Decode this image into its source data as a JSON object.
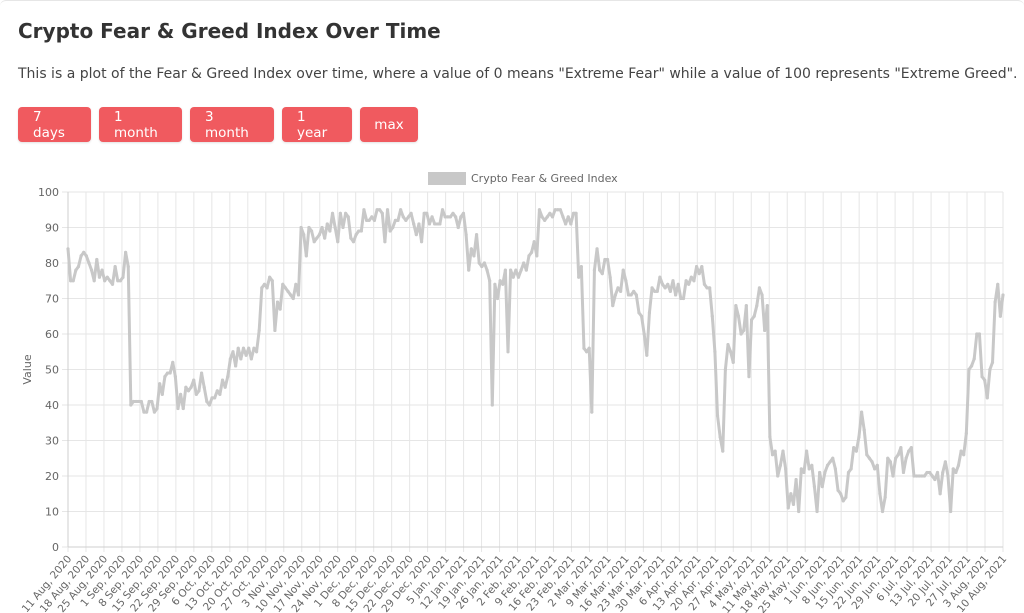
{
  "page": {
    "title": "Crypto Fear & Greed Index Over Time",
    "description": "This is a plot of the Fear & Greed Index over time, where a value of 0 means \"Extreme Fear\" while a value of 100 represents \"Extreme Greed\"."
  },
  "buttons": [
    "7 days",
    "1 month",
    "3 month",
    "1 year",
    "max"
  ],
  "colors": {
    "button_bg": "#f05a5f",
    "line": "#c8c8c8",
    "grid": "#e6e6e6",
    "axis_text": "#666666"
  },
  "chart_data": {
    "type": "line",
    "legend": {
      "label": "Crypto Fear & Greed Index",
      "position": "top"
    },
    "ylabel": "Value",
    "xlabel": "",
    "ylim": [
      0,
      100
    ],
    "yticks": [
      0,
      10,
      20,
      30,
      40,
      50,
      60,
      70,
      80,
      90,
      100
    ],
    "xticks": [
      "11 Aug, 2020",
      "18 Aug, 2020",
      "25 Aug, 2020",
      "1 Sep, 2020",
      "8 Sep, 2020",
      "15 Sep, 2020",
      "22 Sep, 2020",
      "29 Sep, 2020",
      "6 Oct, 2020",
      "13 Oct, 2020",
      "20 Oct, 2020",
      "27 Oct, 2020",
      "3 Nov, 2020",
      "10 Nov, 2020",
      "17 Nov, 2020",
      "24 Nov, 2020",
      "1 Dec, 2020",
      "8 Dec, 2020",
      "15 Dec, 2020",
      "22 Dec, 2020",
      "29 Dec, 2020",
      "5 Jan, 2021",
      "12 Jan, 2021",
      "19 Jan, 2021",
      "26 Jan, 2021",
      "2 Feb, 2021",
      "9 Feb, 2021",
      "16 Feb, 2021",
      "23 Feb, 2021",
      "2 Mar, 2021",
      "9 Mar, 2021",
      "16 Mar, 2021",
      "23 Mar, 2021",
      "30 Mar, 2021",
      "6 Apr, 2021",
      "13 Apr, 2021",
      "20 Apr, 2021",
      "27 Apr, 2021",
      "4 May, 2021",
      "11 May, 2021",
      "18 May, 2021",
      "25 May, 2021",
      "1 Jun, 2021",
      "8 Jun, 2021",
      "15 Jun, 2021",
      "22 Jun, 2021",
      "29 Jun, 2021",
      "6 Jul, 2021",
      "13 Jul, 2021",
      "20 Jul, 2021",
      "27 Jul, 2021",
      "3 Aug, 2021",
      "10 Aug, 2021"
    ],
    "grid": true,
    "series": [
      {
        "name": "Crypto Fear & Greed Index",
        "values": [
          84,
          75,
          75,
          78,
          79,
          82,
          83,
          82,
          80,
          78,
          75,
          81,
          76,
          78,
          75,
          76,
          75,
          74,
          79,
          75,
          75,
          76,
          83,
          79,
          40,
          41,
          41,
          41,
          41,
          38,
          38,
          41,
          41,
          38,
          39,
          46,
          43,
          48,
          49,
          49,
          52,
          48,
          39,
          43,
          39,
          45,
          44,
          45,
          47,
          43,
          44,
          49,
          45,
          41,
          40,
          42,
          42,
          44,
          43,
          47,
          45,
          48,
          53,
          55,
          51,
          56,
          53,
          56,
          54,
          56,
          53,
          56,
          55,
          61,
          73,
          74,
          73,
          76,
          75,
          61,
          69,
          67,
          74,
          73,
          72,
          71,
          70,
          74,
          71,
          90,
          88,
          82,
          90,
          89,
          86,
          87,
          88,
          90,
          87,
          91,
          89,
          94,
          90,
          86,
          94,
          90,
          94,
          93,
          87,
          86,
          88,
          89,
          89,
          95,
          92,
          92,
          93,
          92,
          95,
          95,
          94,
          86,
          95,
          89,
          90,
          92,
          92,
          95,
          93,
          92,
          93,
          94,
          91,
          88,
          91,
          86,
          94,
          94,
          91,
          93,
          91,
          91,
          91,
          95,
          93,
          93,
          93,
          94,
          93,
          90,
          93,
          94,
          88,
          78,
          84,
          82,
          88,
          80,
          79,
          80,
          78,
          75,
          40,
          74,
          70,
          75,
          74,
          78,
          55,
          78,
          76,
          78,
          76,
          78,
          80,
          78,
          82,
          83,
          86,
          82,
          95,
          93,
          92,
          93,
          94,
          93,
          95,
          95,
          95,
          93,
          91,
          93,
          91,
          94,
          94,
          76,
          79,
          56,
          55,
          56,
          38,
          78,
          84,
          78,
          77,
          81,
          81,
          76,
          68,
          71,
          73,
          72,
          78,
          75,
          71,
          71,
          72,
          71,
          66,
          65,
          60,
          54,
          66,
          73,
          72,
          72,
          76,
          74,
          73,
          74,
          72,
          75,
          71,
          74,
          70,
          70,
          75,
          74,
          76,
          75,
          79,
          77,
          79,
          74,
          73,
          73,
          65,
          55,
          37,
          31,
          27,
          50,
          57,
          55,
          52,
          68,
          65,
          60,
          61,
          68,
          48,
          64,
          65,
          68,
          73,
          71,
          61,
          68,
          31,
          26,
          27,
          20,
          23,
          27,
          22,
          11,
          15,
          12,
          19,
          10,
          22,
          21,
          27,
          22,
          23,
          17,
          10,
          21,
          17,
          21,
          23,
          24,
          25,
          22,
          16,
          15,
          13,
          14,
          21,
          22,
          28,
          27,
          31,
          38,
          33,
          26,
          25,
          24,
          22,
          23,
          15,
          10,
          14,
          25,
          24,
          20,
          25,
          26,
          28,
          21,
          25,
          27,
          28,
          20,
          20,
          20,
          20,
          20,
          21,
          21,
          20,
          19,
          21,
          15,
          21,
          24,
          20,
          10,
          22,
          21,
          23,
          27,
          26,
          32,
          50,
          51,
          53,
          60,
          60,
          48,
          47,
          42,
          50,
          52,
          69,
          74,
          65,
          71
        ]
      }
    ]
  }
}
